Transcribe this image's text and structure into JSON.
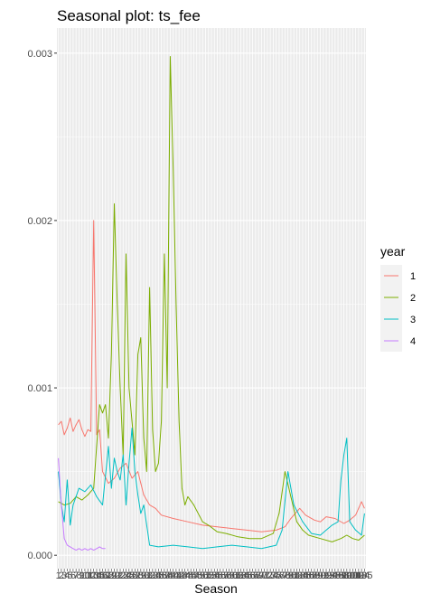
{
  "chart_data": {
    "type": "line",
    "title": "Seasonal plot: ts_fee",
    "xlabel": "Season",
    "ylabel": "",
    "ylim": [
      -8e-05,
      0.00315
    ],
    "xlim": [
      0.5,
      105.5
    ],
    "y_ticks": [
      0.0,
      0.001,
      0.002,
      0.003
    ],
    "y_tick_labels": [
      "0.000",
      "0.001",
      "0.002",
      "0.003"
    ],
    "x_tick_labels": [
      "1",
      "2",
      "3",
      "4",
      "5",
      "6",
      "7",
      "8",
      "9",
      "10",
      "11",
      "12",
      "13",
      "14",
      "15",
      "16",
      "17",
      "18",
      "19",
      "20",
      "21",
      "22",
      "23",
      "24",
      "25",
      "26",
      "27",
      "28",
      "29",
      "30",
      "31",
      "32",
      "33",
      "34",
      "35",
      "36",
      "37",
      "38",
      "39",
      "40",
      "41",
      "42",
      "43",
      "44",
      "45",
      "46",
      "47",
      "48",
      "49",
      "50",
      "51",
      "52",
      "53",
      "54",
      "55",
      "56",
      "57",
      "58",
      "59",
      "60",
      "61",
      "62",
      "63",
      "64",
      "65",
      "66",
      "67",
      "68",
      "69",
      "70",
      "71",
      "72",
      "73",
      "74",
      "75",
      "76",
      "77",
      "78",
      "79",
      "80",
      "81",
      "82",
      "83",
      "84",
      "85",
      "86",
      "87",
      "88",
      "89",
      "90",
      "91",
      "92",
      "93",
      "94",
      "95",
      "96",
      "97",
      "98",
      "99",
      "100",
      "101",
      "102",
      "103",
      "104",
      "105"
    ],
    "grid": true,
    "legend": {
      "title": "year",
      "position": "right"
    },
    "series": [
      {
        "name": "1",
        "color": "#F8766D",
        "x": [
          1,
          2,
          3,
          4,
          5,
          6,
          7,
          8,
          9,
          10,
          11,
          12,
          13,
          14,
          15,
          16,
          18,
          20,
          22,
          24,
          26,
          28,
          30,
          32,
          34,
          36,
          40,
          45,
          50,
          55,
          60,
          65,
          70,
          75,
          78,
          80,
          83,
          85,
          88,
          90,
          92,
          95,
          98,
          100,
          102,
          104,
          105
        ],
        "y": [
          0.00078,
          0.0008,
          0.00072,
          0.00076,
          0.00082,
          0.00074,
          0.00078,
          0.00081,
          0.00075,
          0.00071,
          0.00075,
          0.00074,
          0.002,
          0.00072,
          0.00075,
          0.0005,
          0.00043,
          0.00046,
          0.00052,
          0.00055,
          0.00046,
          0.0005,
          0.00036,
          0.0003,
          0.00028,
          0.00024,
          0.00022,
          0.0002,
          0.00018,
          0.00017,
          0.00016,
          0.00015,
          0.00014,
          0.00015,
          0.00017,
          0.00022,
          0.00028,
          0.00024,
          0.00021,
          0.0002,
          0.00023,
          0.00022,
          0.00019,
          0.00021,
          0.00024,
          0.00032,
          0.00028
        ]
      },
      {
        "name": "2",
        "color": "#7CAE00",
        "x": [
          1,
          3,
          5,
          7,
          9,
          11,
          13,
          15,
          16,
          17,
          18,
          19,
          20,
          21,
          22,
          23,
          24,
          25,
          26,
          27,
          28,
          29,
          30,
          31,
          32,
          33,
          34,
          35,
          36,
          37,
          38,
          39,
          40,
          41,
          42,
          43,
          44,
          45,
          47,
          50,
          52,
          55,
          58,
          62,
          66,
          70,
          74,
          76,
          78,
          80,
          82,
          84,
          86,
          90,
          94,
          97,
          99,
          101,
          103,
          105
        ],
        "y": [
          0.00032,
          0.0003,
          0.00031,
          0.00035,
          0.00033,
          0.00036,
          0.0004,
          0.0009,
          0.00085,
          0.0009,
          0.0007,
          0.0012,
          0.0021,
          0.0015,
          0.001,
          0.0006,
          0.0018,
          0.001,
          0.0008,
          0.0006,
          0.0012,
          0.0013,
          0.0007,
          0.0005,
          0.0016,
          0.00075,
          0.0005,
          0.00055,
          0.0008,
          0.0018,
          0.001,
          0.00298,
          0.0023,
          0.0015,
          0.0008,
          0.0004,
          0.0003,
          0.00035,
          0.0003,
          0.0002,
          0.00018,
          0.00014,
          0.00013,
          0.00011,
          0.0001,
          0.0001,
          0.00013,
          0.00025,
          0.0005,
          0.00035,
          0.0002,
          0.00015,
          0.00012,
          0.0001,
          8e-05,
          0.0001,
          0.00012,
          0.0001,
          9e-05,
          0.00012
        ]
      },
      {
        "name": "3",
        "color": "#00BFC4",
        "x": [
          1,
          2,
          3,
          4,
          5,
          6,
          8,
          10,
          12,
          14,
          16,
          18,
          19,
          20,
          21,
          22,
          23,
          24,
          25,
          26,
          27,
          28,
          29,
          30,
          32,
          35,
          40,
          45,
          50,
          55,
          60,
          65,
          70,
          75,
          77,
          79,
          81,
          84,
          87,
          90,
          92,
          94,
          96,
          97,
          98,
          99,
          100,
          102,
          104,
          105
        ],
        "y": [
          0.0005,
          0.0003,
          0.0002,
          0.00045,
          0.00018,
          0.0003,
          0.0004,
          0.00038,
          0.00042,
          0.00035,
          0.0003,
          0.00065,
          0.0004,
          0.00058,
          0.0005,
          0.00045,
          0.0006,
          0.0003,
          0.00055,
          0.00076,
          0.0005,
          0.00036,
          0.00025,
          0.0003,
          6e-05,
          5e-05,
          6e-05,
          5e-05,
          4e-05,
          5e-05,
          6e-05,
          5e-05,
          4e-05,
          6e-05,
          0.00015,
          0.0005,
          0.0003,
          0.0002,
          0.00013,
          0.00012,
          0.00015,
          0.00018,
          0.0002,
          0.00045,
          0.0006,
          0.0007,
          0.0002,
          0.00015,
          0.00012,
          0.00025
        ]
      },
      {
        "name": "4",
        "color": "#C77CFF",
        "x": [
          1,
          2,
          3,
          4,
          5,
          6,
          7,
          8,
          9,
          10,
          11,
          12,
          13,
          14,
          15,
          16,
          17
        ],
        "y": [
          0.00058,
          0.0003,
          0.0001,
          6e-05,
          5e-05,
          4e-05,
          3e-05,
          4e-05,
          3e-05,
          4e-05,
          3e-05,
          4e-05,
          3e-05,
          4e-05,
          5e-05,
          4e-05,
          4e-05
        ]
      }
    ]
  }
}
